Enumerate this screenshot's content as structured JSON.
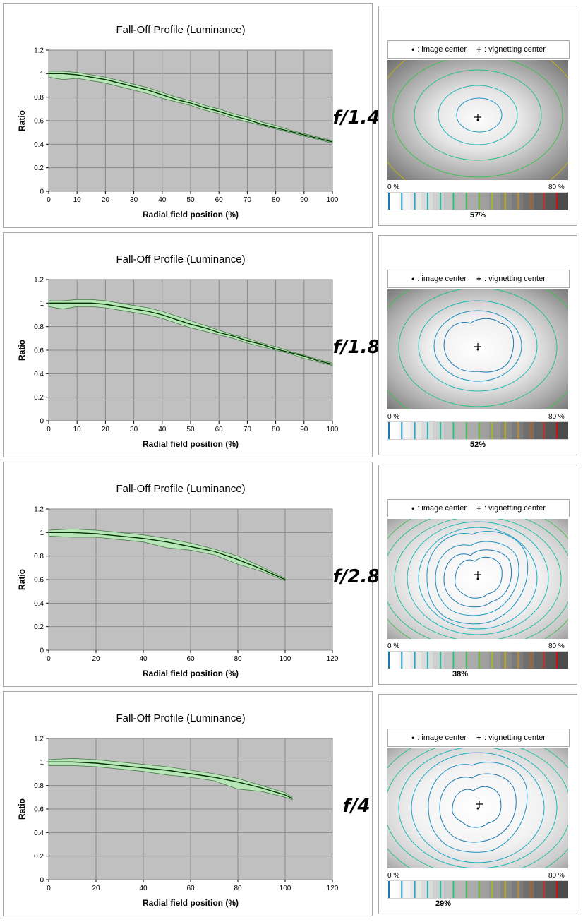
{
  "legend": {
    "image_center_glyph": "•",
    "image_center_label": ": image center",
    "vignetting_center_glyph": "+",
    "vignetting_center_label": ": vignetting center"
  },
  "scale": {
    "min_label": "0 %",
    "max_label": "80 %",
    "colors": [
      "#1a7ab0",
      "#1e93c0",
      "#20a8c8",
      "#22b8b8",
      "#24c0a0",
      "#28c080",
      "#40c050",
      "#70c030",
      "#a0c020",
      "#c0b018",
      "#c08818",
      "#c06018",
      "#c03018",
      "#d01010"
    ]
  },
  "colors": {
    "plot_bg": "#c0c0c0",
    "band_fill": "#b8e6b8",
    "band_edge": "#4a7a4a",
    "line": "#003300"
  },
  "panels": [
    {
      "fstop": "f/1.4",
      "vignetting_pct": "57%",
      "chart_data": {
        "type": "line",
        "title": "Fall-Off Profile (Luminance)",
        "xlabel": "Radial field position (%)",
        "ylabel": "Ratio",
        "xlim": [
          0,
          100
        ],
        "ylim": [
          0,
          1.2
        ],
        "xticks": [
          0,
          10,
          20,
          30,
          40,
          50,
          60,
          70,
          80,
          90,
          100
        ],
        "yticks": [
          0,
          0.2,
          0.4,
          0.6,
          0.8,
          1,
          1.2
        ],
        "x": [
          0,
          5,
          10,
          15,
          20,
          25,
          30,
          35,
          40,
          45,
          50,
          55,
          60,
          65,
          70,
          75,
          80,
          85,
          90,
          95,
          100
        ],
        "y": [
          1.0,
          1.0,
          0.99,
          0.97,
          0.95,
          0.92,
          0.89,
          0.86,
          0.82,
          0.78,
          0.75,
          0.71,
          0.68,
          0.64,
          0.61,
          0.57,
          0.54,
          0.51,
          0.48,
          0.45,
          0.42
        ],
        "upper": [
          1.02,
          1.02,
          1.01,
          0.99,
          0.97,
          0.94,
          0.91,
          0.88,
          0.84,
          0.8,
          0.77,
          0.73,
          0.7,
          0.66,
          0.63,
          0.59,
          0.56,
          0.52,
          0.49,
          0.46,
          0.43
        ],
        "lower": [
          0.97,
          0.95,
          0.96,
          0.94,
          0.92,
          0.89,
          0.86,
          0.83,
          0.79,
          0.76,
          0.73,
          0.69,
          0.66,
          0.62,
          0.59,
          0.56,
          0.53,
          0.5,
          0.47,
          0.44,
          0.41
        ]
      }
    },
    {
      "fstop": "f/1.8",
      "vignetting_pct": "52%",
      "chart_data": {
        "type": "line",
        "title": "Fall-Off Profile (Luminance)",
        "xlabel": "Radial field position (%)",
        "ylabel": "Ratio",
        "xlim": [
          0,
          100
        ],
        "ylim": [
          0,
          1.2
        ],
        "xticks": [
          0,
          10,
          20,
          30,
          40,
          50,
          60,
          70,
          80,
          90,
          100
        ],
        "yticks": [
          0,
          0.2,
          0.4,
          0.6,
          0.8,
          1,
          1.2
        ],
        "x": [
          0,
          5,
          10,
          15,
          20,
          25,
          30,
          35,
          40,
          45,
          50,
          55,
          60,
          65,
          70,
          75,
          80,
          85,
          90,
          95,
          100
        ],
        "y": [
          1.0,
          1.0,
          1.0,
          1.0,
          0.99,
          0.97,
          0.95,
          0.93,
          0.9,
          0.86,
          0.82,
          0.79,
          0.75,
          0.72,
          0.68,
          0.65,
          0.61,
          0.58,
          0.55,
          0.51,
          0.48
        ],
        "upper": [
          1.02,
          1.02,
          1.03,
          1.03,
          1.02,
          1.0,
          0.98,
          0.96,
          0.93,
          0.89,
          0.85,
          0.81,
          0.77,
          0.73,
          0.7,
          0.66,
          0.63,
          0.59,
          0.56,
          0.52,
          0.49
        ],
        "lower": [
          0.97,
          0.95,
          0.97,
          0.97,
          0.96,
          0.94,
          0.92,
          0.9,
          0.87,
          0.83,
          0.79,
          0.76,
          0.73,
          0.7,
          0.66,
          0.63,
          0.6,
          0.57,
          0.53,
          0.5,
          0.47
        ]
      }
    },
    {
      "fstop": "f/2.8",
      "vignetting_pct": "38%",
      "chart_data": {
        "type": "line",
        "title": "Fall-Off Profile (Luminance)",
        "xlabel": "Radial field position (%)",
        "ylabel": "Ratio",
        "xlim": [
          0,
          120
        ],
        "ylim": [
          0,
          1.2
        ],
        "xticks": [
          0,
          20,
          40,
          60,
          80,
          100,
          120
        ],
        "yticks": [
          0,
          0.2,
          0.4,
          0.6,
          0.8,
          1,
          1.2
        ],
        "x": [
          0,
          10,
          20,
          30,
          40,
          50,
          60,
          70,
          80,
          90,
          100
        ],
        "y": [
          1.0,
          1.0,
          0.99,
          0.97,
          0.95,
          0.92,
          0.88,
          0.84,
          0.77,
          0.69,
          0.6
        ],
        "upper": [
          1.02,
          1.03,
          1.02,
          1.0,
          0.98,
          0.95,
          0.91,
          0.86,
          0.8,
          0.71,
          0.61
        ],
        "lower": [
          0.97,
          0.96,
          0.96,
          0.94,
          0.92,
          0.87,
          0.85,
          0.81,
          0.73,
          0.67,
          0.59
        ]
      }
    },
    {
      "fstop": "f/4",
      "vignetting_pct": "29%",
      "chart_data": {
        "type": "line",
        "title": "Fall-Off Profile (Luminance)",
        "xlabel": "Radial field position (%)",
        "ylabel": "Ratio",
        "xlim": [
          0,
          120
        ],
        "ylim": [
          0,
          1.2
        ],
        "xticks": [
          0,
          20,
          40,
          60,
          80,
          100,
          120
        ],
        "yticks": [
          0,
          0.2,
          0.4,
          0.6,
          0.8,
          1,
          1.2
        ],
        "x": [
          0,
          10,
          20,
          30,
          40,
          50,
          60,
          70,
          80,
          90,
          100,
          103
        ],
        "y": [
          1.0,
          1.0,
          0.99,
          0.97,
          0.95,
          0.93,
          0.9,
          0.87,
          0.83,
          0.78,
          0.72,
          0.69
        ],
        "upper": [
          1.02,
          1.03,
          1.02,
          1.0,
          0.98,
          0.96,
          0.93,
          0.9,
          0.86,
          0.8,
          0.74,
          0.7
        ],
        "lower": [
          0.97,
          0.97,
          0.96,
          0.94,
          0.92,
          0.89,
          0.87,
          0.84,
          0.77,
          0.75,
          0.7,
          0.68
        ]
      }
    }
  ]
}
